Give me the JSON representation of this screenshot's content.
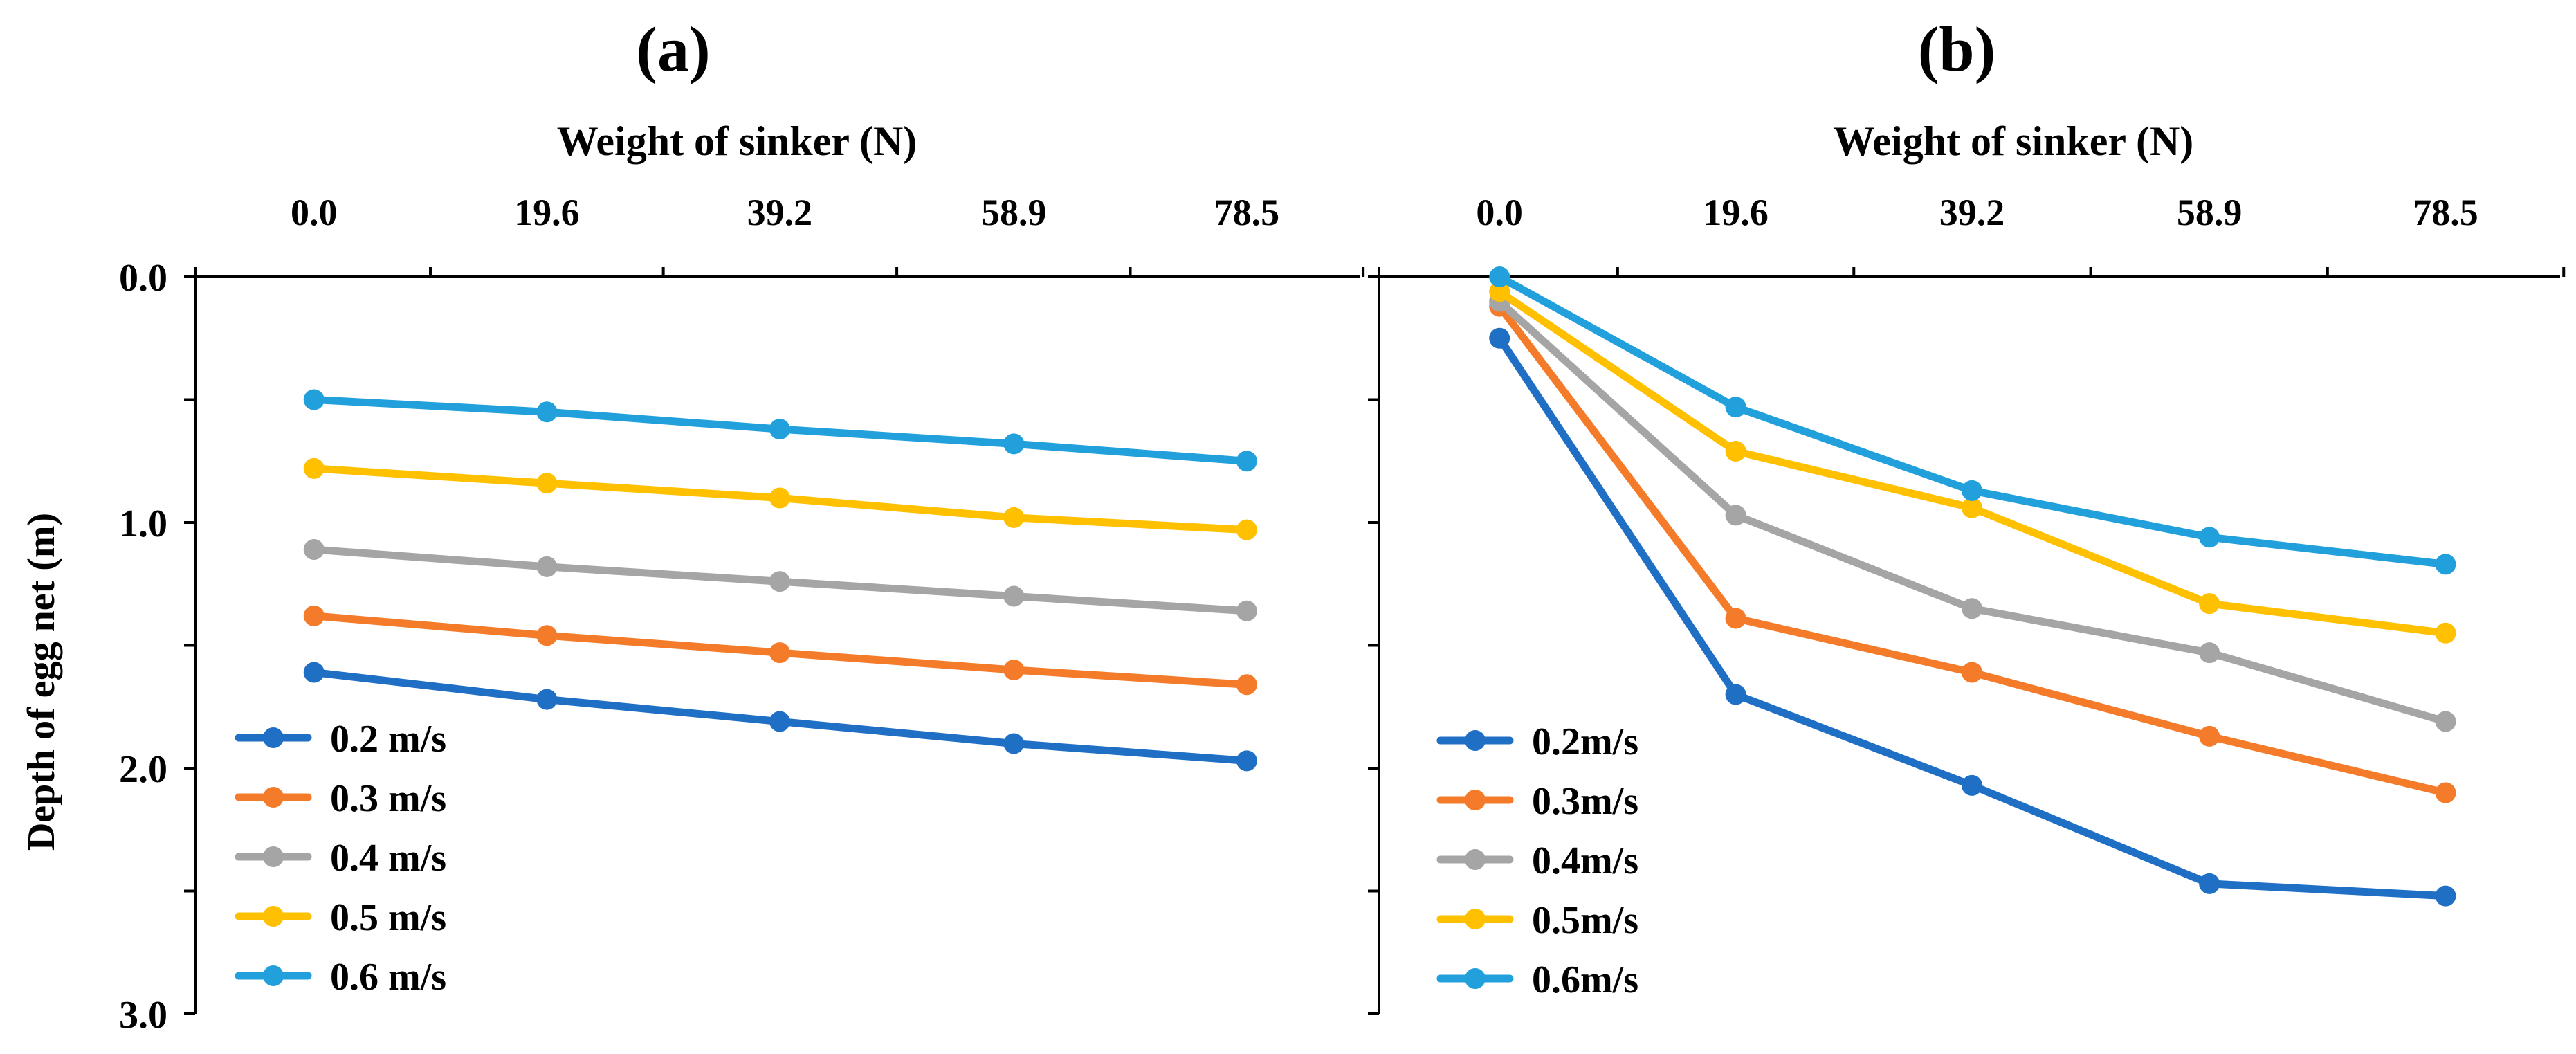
{
  "chart_data": [
    {
      "type": "line",
      "panel_label": "(a)",
      "xlabel": "Weight of sinker (N)",
      "ylabel": "Depth  of egg net (m)",
      "categories": [
        "0.0",
        "19.6",
        "39.2",
        "58.9",
        "78.5"
      ],
      "x": [
        0.0,
        19.6,
        39.2,
        58.9,
        78.5
      ],
      "xlim": [
        -10,
        88
      ],
      "ylim": [
        0,
        3
      ],
      "yticks": [
        "0.0",
        "1.0",
        "2.0",
        "3.0"
      ],
      "y_reversed": true,
      "legend_position": "bottom-left",
      "series": [
        {
          "name": "0.2 m/s",
          "color": "#1F6FC5",
          "values": [
            1.61,
            1.72,
            1.81,
            1.9,
            1.97
          ]
        },
        {
          "name": "0.3 m/s",
          "color": "#F47B2A",
          "values": [
            1.38,
            1.46,
            1.53,
            1.6,
            1.66
          ]
        },
        {
          "name": "0.4 m/s",
          "color": "#A5A5A5",
          "values": [
            1.11,
            1.18,
            1.24,
            1.3,
            1.36
          ]
        },
        {
          "name": "0.5 m/s",
          "color": "#FFC000",
          "values": [
            0.78,
            0.84,
            0.9,
            0.98,
            1.03
          ]
        },
        {
          "name": "0.6 m/s",
          "color": "#22A0DC",
          "values": [
            0.5,
            0.55,
            0.62,
            0.68,
            0.75
          ]
        }
      ]
    },
    {
      "type": "line",
      "panel_label": "(b)",
      "xlabel": "Weight of sinker (N)",
      "categories": [
        "0.0",
        "19.6",
        "39.2",
        "58.9",
        "78.5"
      ],
      "x": [
        0.0,
        19.6,
        39.2,
        58.9,
        78.5
      ],
      "xlim": [
        -10,
        88
      ],
      "ylim": [
        0,
        3
      ],
      "y_reversed": true,
      "legend_position": "bottom-left",
      "series": [
        {
          "name": "0.2m/s",
          "color": "#1F6FC5",
          "values": [
            0.25,
            1.7,
            2.07,
            2.47,
            2.52
          ]
        },
        {
          "name": "0.3m/s",
          "color": "#F47B2A",
          "values": [
            0.12,
            1.39,
            1.61,
            1.87,
            2.1
          ]
        },
        {
          "name": "0.4m/s",
          "color": "#A5A5A5",
          "values": [
            0.1,
            0.97,
            1.35,
            1.53,
            1.81
          ]
        },
        {
          "name": "0.5m/s",
          "color": "#FFC000",
          "values": [
            0.06,
            0.71,
            0.94,
            1.33,
            1.45
          ]
        },
        {
          "name": "0.6m/s",
          "color": "#22A0DC",
          "values": [
            0.0,
            0.53,
            0.87,
            1.06,
            1.17
          ]
        }
      ]
    }
  ]
}
